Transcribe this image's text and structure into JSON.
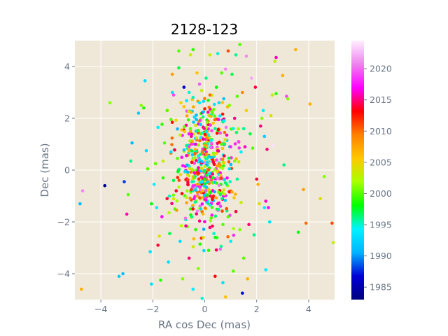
{
  "chart_data": {
    "type": "scatter",
    "title": "2128-123",
    "xlabel": "RA cos Dec (mas)",
    "ylabel": "Dec (mas)",
    "xlim": [
      -5,
      5
    ],
    "ylim": [
      -5,
      5
    ],
    "xticks": [
      -4,
      -2,
      0,
      2,
      4
    ],
    "yticks": [
      -4,
      -2,
      0,
      2,
      4
    ],
    "grid": true,
    "colorbar": {
      "range": [
        1983,
        2024.5
      ],
      "ticks": [
        1985,
        1990,
        1995,
        2000,
        2005,
        2010,
        2015,
        2020
      ],
      "colormap": "gist_ncar",
      "stops": [
        "#000080",
        "#0000d6",
        "#00b4ff",
        "#00f3ff",
        "#00ff00",
        "#a8ff00",
        "#ffc800",
        "#ff8000",
        "#ff0000",
        "#ff00ff",
        "#ee82ee",
        "#fff0ff"
      ]
    },
    "background_color": "#efe8d8",
    "points": [
      {
        "x": -4.75,
        "y": -4.6,
        "year": 2007
      },
      {
        "x": -4.7,
        "y": -0.8,
        "year": 2021
      },
      {
        "x": -4.8,
        "y": -1.3,
        "year": 1991
      },
      {
        "x": -3.85,
        "y": -0.6,
        "year": 1983.5
      },
      {
        "x": -3.65,
        "y": 2.6,
        "year": 2001
      },
      {
        "x": -3.3,
        "y": -4.1,
        "year": 1992
      },
      {
        "x": -3.15,
        "y": -4.0,
        "year": 1991
      },
      {
        "x": -3.1,
        "y": -0.45,
        "year": 1988
      },
      {
        "x": -3.0,
        "y": -1.7,
        "year": 2016
      },
      {
        "x": -2.95,
        "y": -0.95,
        "year": 2000
      },
      {
        "x": -2.85,
        "y": 0.35,
        "year": 1996
      },
      {
        "x": -2.8,
        "y": 1.05,
        "year": 1991
      },
      {
        "x": -2.55,
        "y": 2.2,
        "year": 1992
      },
      {
        "x": -2.45,
        "y": 2.5,
        "year": 2001
      },
      {
        "x": -2.35,
        "y": 2.4,
        "year": 1999
      },
      {
        "x": -2.3,
        "y": 3.45,
        "year": 1993
      },
      {
        "x": -2.25,
        "y": 0.75,
        "year": 1993
      },
      {
        "x": -2.2,
        "y": 0.05,
        "year": 2000
      },
      {
        "x": -2.05,
        "y": -4.4,
        "year": 1993
      },
      {
        "x": -2.1,
        "y": -3.15,
        "year": 1993
      },
      {
        "x": -2.05,
        "y": -1.3,
        "year": 1998
      },
      {
        "x": -1.95,
        "y": -0.55,
        "year": 1994
      },
      {
        "x": -1.9,
        "y": 0.25,
        "year": 2000
      },
      {
        "x": -1.8,
        "y": 1.65,
        "year": 1994
      },
      {
        "x": -1.85,
        "y": -1.45,
        "year": 1994
      },
      {
        "x": -1.8,
        "y": -2.9,
        "year": 2014
      },
      {
        "x": -1.75,
        "y": -2.55,
        "year": 2004
      },
      {
        "x": -1.7,
        "y": -4.25,
        "year": 1999
      },
      {
        "x": -1.65,
        "y": -1.8,
        "year": 2017
      },
      {
        "x": -1.6,
        "y": -0.3,
        "year": 1999
      },
      {
        "x": -1.6,
        "y": 0.35,
        "year": 2003
      },
      {
        "x": -1.55,
        "y": 1.05,
        "year": 2000
      },
      {
        "x": -1.45,
        "y": 2.3,
        "year": 2000
      },
      {
        "x": -1.45,
        "y": -1.1,
        "year": 2014
      },
      {
        "x": -1.4,
        "y": -3.55,
        "year": 1993
      },
      {
        "x": -1.35,
        "y": -2.45,
        "year": 1997
      },
      {
        "x": -1.3,
        "y": 0.7,
        "year": 1993
      },
      {
        "x": -1.3,
        "y": 1.95,
        "year": 2000
      },
      {
        "x": -1.25,
        "y": 3.0,
        "year": 1993
      },
      {
        "x": -1.25,
        "y": 3.7,
        "year": 2008
      },
      {
        "x": -1.2,
        "y": 2.9,
        "year": 2019
      },
      {
        "x": -1.2,
        "y": -0.4,
        "year": 1997
      },
      {
        "x": -1.15,
        "y": -1.5,
        "year": 2000
      },
      {
        "x": -1.1,
        "y": -0.8,
        "year": 2014
      },
      {
        "x": -1.05,
        "y": 0.45,
        "year": 2000
      },
      {
        "x": -1.0,
        "y": 4.6,
        "year": 2000
      },
      {
        "x": -1.0,
        "y": 3.95,
        "year": 1997
      },
      {
        "x": -0.95,
        "y": 1.35,
        "year": 2003
      },
      {
        "x": -0.95,
        "y": -2.75,
        "year": 1993
      },
      {
        "x": -0.9,
        "y": -2.15,
        "year": 2002
      },
      {
        "x": -0.85,
        "y": -4.2,
        "year": 2001
      },
      {
        "x": -0.8,
        "y": 3.2,
        "year": 1986
      },
      {
        "x": -0.8,
        "y": 2.45,
        "year": 2006
      },
      {
        "x": -0.75,
        "y": -0.05,
        "year": 1993
      },
      {
        "x": -0.7,
        "y": -1.05,
        "year": 2003
      },
      {
        "x": -0.7,
        "y": 0.95,
        "year": 1996
      },
      {
        "x": -0.65,
        "y": -0.55,
        "year": 2014
      },
      {
        "x": -0.6,
        "y": 3.0,
        "year": 1995
      },
      {
        "x": -0.6,
        "y": -3.4,
        "year": 2015
      },
      {
        "x": -0.55,
        "y": 4.45,
        "year": 2003
      },
      {
        "x": -0.55,
        "y": 1.6,
        "year": 2000
      },
      {
        "x": -0.5,
        "y": -1.8,
        "year": 1996
      },
      {
        "x": -0.5,
        "y": 0.3,
        "year": 2013
      },
      {
        "x": -0.45,
        "y": -4.6,
        "year": 1994
      },
      {
        "x": -0.45,
        "y": 4.65,
        "year": 1999
      },
      {
        "x": -0.4,
        "y": 2.05,
        "year": 1993
      },
      {
        "x": -0.4,
        "y": -0.3,
        "year": 2000
      },
      {
        "x": -0.35,
        "y": 1.0,
        "year": 2016
      },
      {
        "x": -0.35,
        "y": -2.3,
        "year": 1999
      },
      {
        "x": -0.3,
        "y": 3.75,
        "year": 2006
      },
      {
        "x": -0.3,
        "y": -1.0,
        "year": 2008
      },
      {
        "x": -0.25,
        "y": 0.55,
        "year": 1995
      },
      {
        "x": -0.25,
        "y": -3.8,
        "year": 2001
      },
      {
        "x": -0.2,
        "y": 2.6,
        "year": 1994
      },
      {
        "x": -0.2,
        "y": -0.65,
        "year": 2018
      },
      {
        "x": -0.15,
        "y": 1.4,
        "year": 2000
      },
      {
        "x": -0.15,
        "y": -1.5,
        "year": 1993
      },
      {
        "x": -0.1,
        "y": -4.95,
        "year": 1995
      },
      {
        "x": -0.1,
        "y": 0.05,
        "year": 2005
      },
      {
        "x": -0.05,
        "y": 2.25,
        "year": 1991
      },
      {
        "x": -0.05,
        "y": -2.6,
        "year": 2004
      },
      {
        "x": 0.0,
        "y": 0.8,
        "year": 2012
      },
      {
        "x": 0.0,
        "y": -0.35,
        "year": 1998
      },
      {
        "x": 0.05,
        "y": 3.55,
        "year": 1996
      },
      {
        "x": 0.05,
        "y": -1.15,
        "year": 2017
      },
      {
        "x": 0.1,
        "y": 1.85,
        "year": 2001
      },
      {
        "x": 0.1,
        "y": 0.3,
        "year": 1993
      },
      {
        "x": 0.15,
        "y": -3.1,
        "year": 1999
      },
      {
        "x": 0.15,
        "y": -0.75,
        "year": 2006
      },
      {
        "x": 0.2,
        "y": 2.9,
        "year": 2010
      },
      {
        "x": 0.2,
        "y": 4.45,
        "year": 2003
      },
      {
        "x": 0.25,
        "y": 1.15,
        "year": 1994
      },
      {
        "x": 0.25,
        "y": -1.85,
        "year": 2000
      },
      {
        "x": 0.3,
        "y": -0.15,
        "year": 2015
      },
      {
        "x": 0.3,
        "y": 2.2,
        "year": 2000
      },
      {
        "x": 0.35,
        "y": -2.45,
        "year": 1995
      },
      {
        "x": 0.35,
        "y": 0.6,
        "year": 2003
      },
      {
        "x": 0.4,
        "y": -4.1,
        "year": 2013
      },
      {
        "x": 0.4,
        "y": 1.6,
        "year": 1996
      },
      {
        "x": 0.45,
        "y": -0.5,
        "year": 1999
      },
      {
        "x": 0.45,
        "y": 3.2,
        "year": 1998
      },
      {
        "x": 0.5,
        "y": 4.5,
        "year": 1995
      },
      {
        "x": 0.5,
        "y": -1.3,
        "year": 2016
      },
      {
        "x": 0.55,
        "y": 0.25,
        "year": 2009
      },
      {
        "x": 0.55,
        "y": 2.6,
        "year": 1993
      },
      {
        "x": 0.6,
        "y": -3.05,
        "year": 2020
      },
      {
        "x": 0.6,
        "y": -0.95,
        "year": 1997
      },
      {
        "x": 0.65,
        "y": 1.0,
        "year": 2000
      },
      {
        "x": 0.65,
        "y": 3.75,
        "year": 2000
      },
      {
        "x": 0.7,
        "y": -4.35,
        "year": 1993
      },
      {
        "x": 0.7,
        "y": -2.1,
        "year": 2000
      },
      {
        "x": 0.75,
        "y": 0.55,
        "year": 2014
      },
      {
        "x": 0.75,
        "y": 1.9,
        "year": 1994
      },
      {
        "x": 0.8,
        "y": -4.9,
        "year": 2006
      },
      {
        "x": 0.8,
        "y": 3.9,
        "year": 2021
      },
      {
        "x": 0.85,
        "y": -0.55,
        "year": 1996
      },
      {
        "x": 0.85,
        "y": 1.35,
        "year": 2016
      },
      {
        "x": 0.9,
        "y": 4.6,
        "year": 2011
      },
      {
        "x": 0.9,
        "y": -1.8,
        "year": 2000
      },
      {
        "x": 0.95,
        "y": 0.05,
        "year": 1993
      },
      {
        "x": 0.95,
        "y": 2.5,
        "year": 2001
      },
      {
        "x": 1.0,
        "y": -2.75,
        "year": 1994
      },
      {
        "x": 1.0,
        "y": 0.9,
        "year": 2018
      },
      {
        "x": 1.05,
        "y": 3.7,
        "year": 1997
      },
      {
        "x": 1.05,
        "y": -0.85,
        "year": 2007
      },
      {
        "x": 1.1,
        "y": 1.6,
        "year": 1995
      },
      {
        "x": 1.1,
        "y": -3.9,
        "year": 2000
      },
      {
        "x": 1.15,
        "y": 0.35,
        "year": 2001
      },
      {
        "x": 1.15,
        "y": 2.0,
        "year": 2015
      },
      {
        "x": 1.2,
        "y": 4.45,
        "year": 1996
      },
      {
        "x": 1.2,
        "y": -1.6,
        "year": 2014
      },
      {
        "x": 1.25,
        "y": 2.85,
        "year": 2000
      },
      {
        "x": 1.25,
        "y": -0.35,
        "year": 1996
      },
      {
        "x": 1.3,
        "y": 1.1,
        "year": 2019
      },
      {
        "x": 1.35,
        "y": 4.85,
        "year": 2000
      },
      {
        "x": 1.35,
        "y": -2.3,
        "year": 2001
      },
      {
        "x": 1.4,
        "y": 0.7,
        "year": 1994
      },
      {
        "x": 1.4,
        "y": -1.25,
        "year": 2003
      },
      {
        "x": 1.45,
        "y": 3.0,
        "year": 2009
      },
      {
        "x": 1.45,
        "y": -4.75,
        "year": 1987
      },
      {
        "x": 1.5,
        "y": 1.6,
        "year": 1996
      },
      {
        "x": 1.5,
        "y": -3.4,
        "year": 2000
      },
      {
        "x": 1.55,
        "y": 0.9,
        "year": 2016
      },
      {
        "x": 1.6,
        "y": 4.4,
        "year": 2021
      },
      {
        "x": 1.6,
        "y": 2.3,
        "year": 2005
      },
      {
        "x": 1.65,
        "y": -4.2,
        "year": 2007
      },
      {
        "x": 1.7,
        "y": -2.1,
        "year": 2015
      },
      {
        "x": 1.75,
        "y": 1.4,
        "year": 1997
      },
      {
        "x": 1.8,
        "y": 3.55,
        "year": 2022
      },
      {
        "x": 1.85,
        "y": 0.85,
        "year": 2000
      },
      {
        "x": 1.9,
        "y": -2.5,
        "year": 1996
      },
      {
        "x": 1.95,
        "y": 3.2,
        "year": 2014
      },
      {
        "x": 2.0,
        "y": -0.35,
        "year": 2014
      },
      {
        "x": 2.05,
        "y": -0.55,
        "year": 2007
      },
      {
        "x": 2.1,
        "y": -1.3,
        "year": 2004
      },
      {
        "x": 2.15,
        "y": 1.7,
        "year": 2015
      },
      {
        "x": 2.2,
        "y": 2.0,
        "year": 2001
      },
      {
        "x": 2.25,
        "y": 2.3,
        "year": 1994
      },
      {
        "x": 2.3,
        "y": 1.3,
        "year": 1992
      },
      {
        "x": 2.3,
        "y": -1.45,
        "year": 1994
      },
      {
        "x": 2.35,
        "y": -3.85,
        "year": 1994
      },
      {
        "x": 2.35,
        "y": -1.2,
        "year": 2016
      },
      {
        "x": 2.4,
        "y": 0.8,
        "year": 2015
      },
      {
        "x": 2.45,
        "y": -1.45,
        "year": 2017
      },
      {
        "x": 2.5,
        "y": -2.0,
        "year": 1993
      },
      {
        "x": 2.55,
        "y": 2.1,
        "year": 2004
      },
      {
        "x": 2.6,
        "y": 2.9,
        "year": 2003
      },
      {
        "x": 2.65,
        "y": 0.95,
        "year": 2024
      },
      {
        "x": 2.7,
        "y": 4.2,
        "year": 2003
      },
      {
        "x": 2.75,
        "y": 4.35,
        "year": 2016
      },
      {
        "x": 2.75,
        "y": 2.95,
        "year": 1999
      },
      {
        "x": 3.0,
        "y": 3.65,
        "year": 2007
      },
      {
        "x": 3.05,
        "y": 0.2,
        "year": 1996
      },
      {
        "x": 3.15,
        "y": 2.85,
        "year": 2019
      },
      {
        "x": 3.2,
        "y": 2.75,
        "year": 2001
      },
      {
        "x": 3.5,
        "y": 4.65,
        "year": 2007
      },
      {
        "x": 3.6,
        "y": -2.4,
        "year": 1998
      },
      {
        "x": 3.8,
        "y": -0.75,
        "year": 2008
      },
      {
        "x": 3.9,
        "y": -2.05,
        "year": 2010
      },
      {
        "x": 4.05,
        "y": 2.55,
        "year": 2007
      },
      {
        "x": 4.45,
        "y": -1.1,
        "year": 2004
      },
      {
        "x": 4.6,
        "y": -0.25,
        "year": 2001
      },
      {
        "x": 4.9,
        "y": -2.05,
        "year": 2011
      },
      {
        "x": 4.95,
        "y": -2.8,
        "year": 2003
      }
    ],
    "dense_core": {
      "center": [
        0.0,
        0.2
      ],
      "sigma": [
        0.55,
        1.25
      ],
      "count": 520,
      "year_range": [
        1990,
        2021
      ]
    }
  }
}
